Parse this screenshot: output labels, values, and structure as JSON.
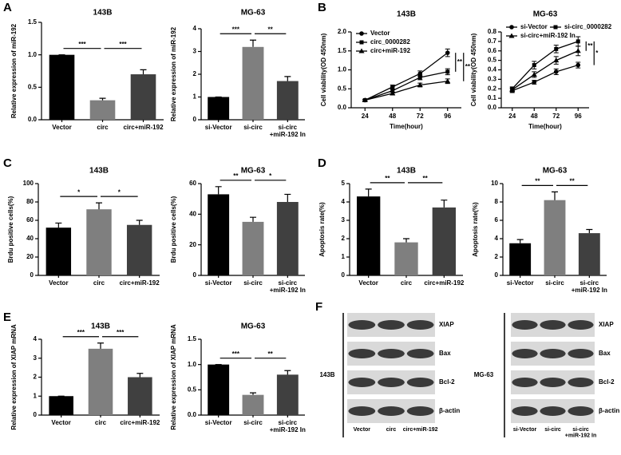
{
  "panel_labels": [
    "A",
    "B",
    "C",
    "D",
    "E",
    "F"
  ],
  "chart_data": [
    {
      "type": "bar",
      "title": "143B",
      "ylabel": "Relative expression of miR-192",
      "categories": [
        "Vector",
        "circ",
        "circ+miR-192"
      ],
      "values": [
        1.0,
        0.3,
        0.7
      ],
      "errors": [
        0,
        0.03,
        0.07
      ],
      "colors": [
        "#000000",
        "#7f7f7f",
        "#404040"
      ],
      "ylim": [
        0,
        1.5
      ],
      "yticks": [
        {
          "value": 0,
          "label": "0.0"
        },
        0.5,
        {
          "value": 1,
          "label": "1.0"
        },
        1.5
      ],
      "significance": [
        {
          "label": "***",
          "between": [
            0,
            1
          ]
        },
        {
          "label": "***",
          "between": [
            1,
            2
          ]
        }
      ]
    },
    {
      "type": "bar",
      "title": "MG-63",
      "ylabel": "Relative expression of miR-192",
      "categories": [
        "si-Vector",
        "si-circ",
        "si-circ\n+miR-192 In"
      ],
      "values": [
        1,
        3.2,
        1.7
      ],
      "errors": [
        0,
        0.3,
        0.2
      ],
      "colors": [
        "#000000",
        "#7f7f7f",
        "#404040"
      ],
      "ylim": [
        0,
        4
      ],
      "yticks": [
        0,
        1,
        2,
        3,
        4
      ],
      "significance": [
        {
          "label": "***",
          "between": [
            0,
            1
          ]
        },
        {
          "label": "**",
          "between": [
            1,
            2
          ]
        }
      ]
    },
    {
      "type": "line",
      "title": "143B",
      "ylabel": "Cell viability(OD 450nm)",
      "xlabel": "Time(hour)",
      "x": [
        24,
        48,
        72,
        96
      ],
      "xlim": [
        12,
        108
      ],
      "xticks": [
        24,
        48,
        72,
        96
      ],
      "ylim": [
        0,
        2
      ],
      "yticks": [
        {
          "value": 0,
          "label": "0.0"
        },
        0.5,
        {
          "value": 1,
          "label": "1.0"
        },
        1.5,
        {
          "value": 2,
          "label": "2.0"
        }
      ],
      "series": [
        {
          "name": "Vector",
          "color": "#000000",
          "marker": "circle",
          "values": [
            0.2,
            0.55,
            0.9,
            1.45
          ],
          "errors": [
            0.02,
            0.05,
            0.07,
            0.1
          ]
        },
        {
          "name": "circ_0000282",
          "color": "#000000",
          "marker": "square",
          "values": [
            0.2,
            0.45,
            0.8,
            0.95
          ],
          "errors": [
            0.02,
            0.04,
            0.06,
            0.08
          ]
        },
        {
          "name": "circ+miR-192",
          "color": "#000000",
          "marker": "triangle",
          "values": [
            0.2,
            0.38,
            0.6,
            0.7
          ],
          "errors": [
            0.02,
            0.03,
            0.05,
            0.06
          ]
        }
      ],
      "significance": [
        {
          "label": "**",
          "between": [
            0,
            1
          ]
        },
        {
          "label": "**",
          "between": [
            0,
            2
          ]
        }
      ]
    },
    {
      "type": "line",
      "title": "MG-63",
      "ylabel": "Cell viability(OD 450nm)",
      "xlabel": "Time(hour)",
      "x": [
        24,
        48,
        72,
        96
      ],
      "xlim": [
        12,
        108
      ],
      "xticks": [
        24,
        48,
        72,
        96
      ],
      "ylim": [
        0,
        0.8
      ],
      "yticks": [
        {
          "value": 0,
          "label": "0.0"
        },
        0.1,
        0.2,
        0.3,
        0.4,
        0.5,
        0.6,
        0.7,
        0.8
      ],
      "series": [
        {
          "name": "si-Vector",
          "color": "#000000",
          "marker": "circle",
          "values": [
            0.18,
            0.27,
            0.38,
            0.45
          ],
          "errors": [
            0.02,
            0.02,
            0.03,
            0.03
          ]
        },
        {
          "name": "si-circ_0000282",
          "color": "#000000",
          "marker": "square",
          "values": [
            0.2,
            0.45,
            0.62,
            0.7
          ],
          "errors": [
            0.02,
            0.04,
            0.04,
            0.05
          ]
        },
        {
          "name": "si-circ+miR-192 In",
          "color": "#000000",
          "marker": "triangle",
          "values": [
            0.19,
            0.35,
            0.5,
            0.6
          ],
          "errors": [
            0.02,
            0.03,
            0.04,
            0.05
          ]
        }
      ],
      "significance": [
        {
          "label": "**",
          "between": [
            1,
            2
          ]
        },
        {
          "label": "*",
          "between": [
            0,
            1
          ]
        }
      ]
    },
    {
      "type": "bar",
      "title": "143B",
      "ylabel": "Brdu positive cells(%)",
      "categories": [
        "Vector",
        "circ",
        "circ+miR-192"
      ],
      "values": [
        52,
        72,
        55
      ],
      "errors": [
        5,
        7,
        5
      ],
      "colors": [
        "#000000",
        "#7f7f7f",
        "#404040"
      ],
      "ylim": [
        0,
        100
      ],
      "yticks": [
        0,
        20,
        40,
        60,
        80,
        100
      ],
      "significance": [
        {
          "label": "*",
          "between": [
            0,
            1
          ]
        },
        {
          "label": "*",
          "between": [
            1,
            2
          ]
        }
      ]
    },
    {
      "type": "bar",
      "title": "MG-63",
      "ylabel": "Brdu positive cells(%)",
      "categories": [
        "si-Vector",
        "si-circ",
        "si-circ\n+miR-192 In"
      ],
      "values": [
        53,
        35,
        48
      ],
      "errors": [
        5,
        3,
        5
      ],
      "colors": [
        "#000000",
        "#7f7f7f",
        "#404040"
      ],
      "ylim": [
        0,
        60
      ],
      "yticks": [
        0,
        20,
        40,
        60
      ],
      "significance": [
        {
          "label": "**",
          "between": [
            0,
            1
          ]
        },
        {
          "label": "*",
          "between": [
            1,
            2
          ]
        }
      ]
    },
    {
      "type": "bar",
      "title": "143B",
      "ylabel": "Apoptosis rate(%)",
      "categories": [
        "Vector",
        "circ",
        "circ+miR-192"
      ],
      "values": [
        4.3,
        1.8,
        3.7
      ],
      "errors": [
        0.4,
        0.2,
        0.4
      ],
      "colors": [
        "#000000",
        "#7f7f7f",
        "#404040"
      ],
      "ylim": [
        0,
        5
      ],
      "yticks": [
        0,
        1,
        2,
        3,
        4,
        5
      ],
      "significance": [
        {
          "label": "**",
          "between": [
            0,
            1
          ]
        },
        {
          "label": "**",
          "between": [
            1,
            2
          ]
        }
      ]
    },
    {
      "type": "bar",
      "title": "MG-63",
      "ylabel": "Apoptosis rate(%)",
      "categories": [
        "si-Vector",
        "si-circ",
        "si-circ\n+miR-192 In"
      ],
      "values": [
        3.5,
        8.2,
        4.6
      ],
      "errors": [
        0.4,
        0.9,
        0.4
      ],
      "colors": [
        "#000000",
        "#7f7f7f",
        "#404040"
      ],
      "ylim": [
        0,
        10
      ],
      "yticks": [
        0,
        2,
        4,
        6,
        8,
        10
      ],
      "significance": [
        {
          "label": "**",
          "between": [
            0,
            1
          ]
        },
        {
          "label": "**",
          "between": [
            1,
            2
          ]
        }
      ]
    },
    {
      "type": "bar",
      "title": "143B",
      "ylabel": "Relative expression of XIAP mRNA",
      "categories": [
        "Vector",
        "circ",
        "circ+miR-192"
      ],
      "values": [
        1,
        3.5,
        2
      ],
      "errors": [
        0,
        0.3,
        0.2
      ],
      "colors": [
        "#000000",
        "#7f7f7f",
        "#404040"
      ],
      "ylim": [
        0,
        4
      ],
      "yticks": [
        0,
        1,
        2,
        3,
        4
      ],
      "significance": [
        {
          "label": "***",
          "between": [
            0,
            1
          ]
        },
        {
          "label": "***",
          "between": [
            1,
            2
          ]
        }
      ]
    },
    {
      "type": "bar",
      "title": "MG-63",
      "ylabel": "Relative expression of XIAP mRNA",
      "categories": [
        "si-Vector",
        "si-circ",
        "si-circ\n+miR-192 In"
      ],
      "values": [
        1,
        0.4,
        0.8
      ],
      "errors": [
        0,
        0.04,
        0.08
      ],
      "colors": [
        "#000000",
        "#7f7f7f",
        "#404040"
      ],
      "ylim": [
        0,
        1.5
      ],
      "yticks": [
        {
          "value": 0,
          "label": "0.0"
        },
        0.5,
        {
          "value": 1,
          "label": "1.0"
        },
        1.5
      ],
      "significance": [
        {
          "label": "***",
          "between": [
            0,
            1
          ]
        },
        {
          "label": "**",
          "between": [
            1,
            2
          ]
        }
      ]
    }
  ],
  "blots": [
    {
      "cell_line": "143B",
      "proteins": [
        "XIAP",
        "Bax",
        "Bcl-2",
        "β-actin"
      ],
      "lanes": [
        "Vector",
        "circ",
        "circ+miR-192"
      ]
    },
    {
      "cell_line": "MG-63",
      "proteins": [
        "XIAP",
        "Bax",
        "Bcl-2",
        "β-actin"
      ],
      "lanes": [
        "si-Vector",
        "si-circ",
        "si-circ\n+miR-192 In"
      ]
    }
  ]
}
